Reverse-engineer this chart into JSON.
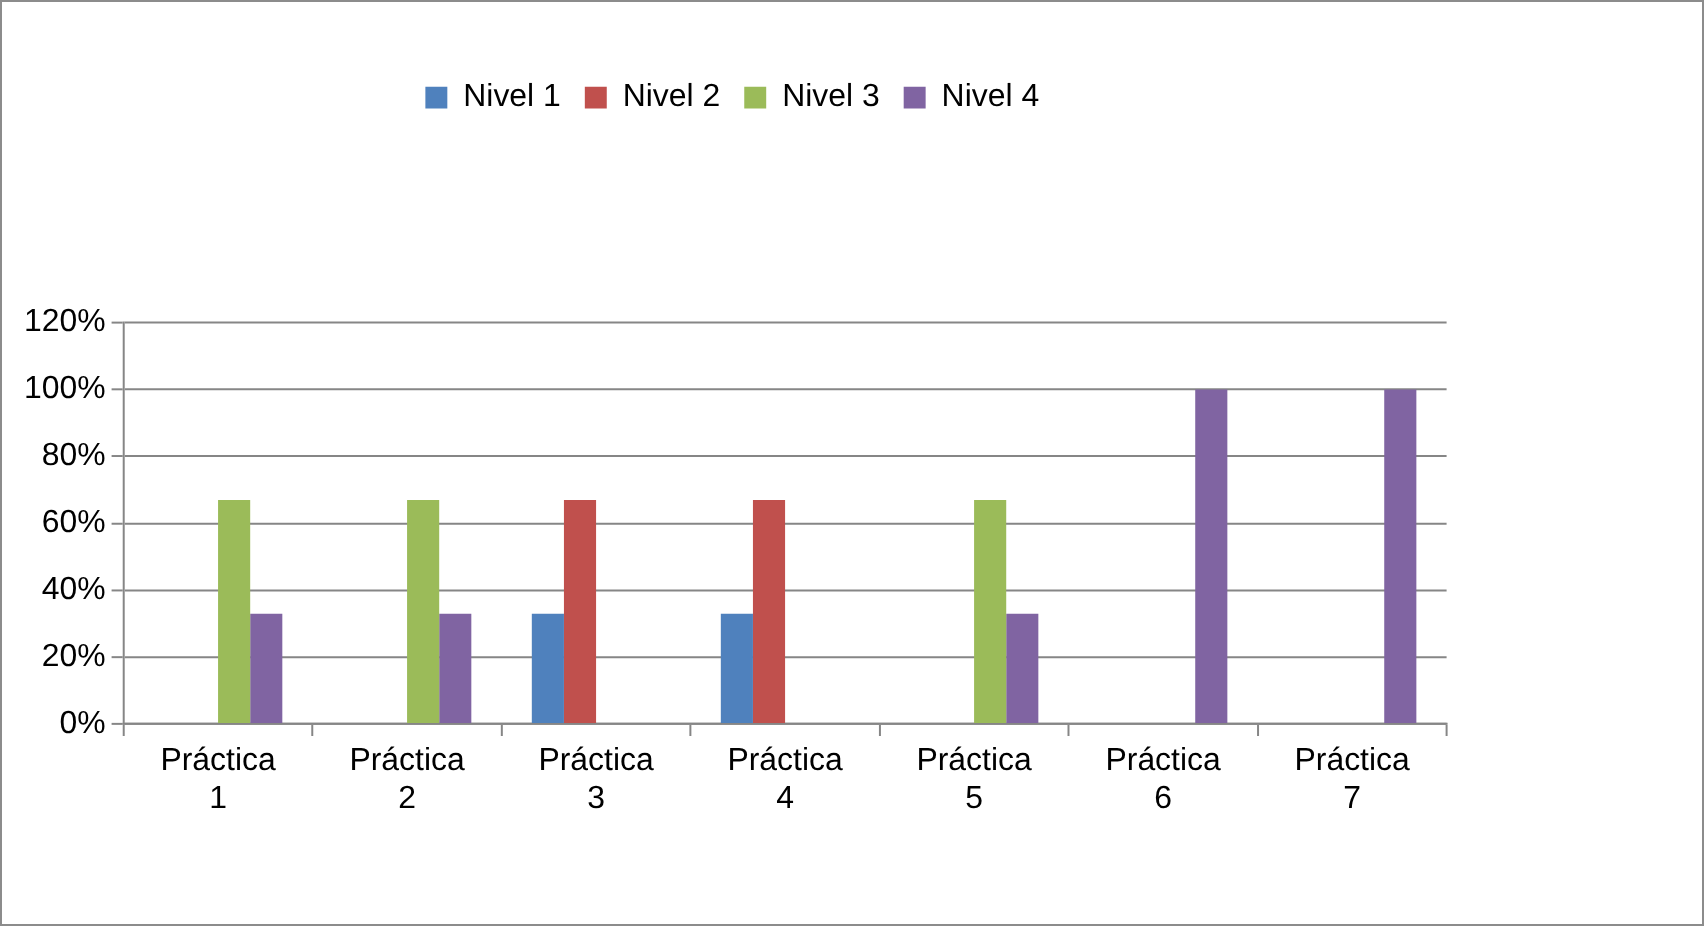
{
  "chart_data": {
    "type": "bar",
    "categories": [
      "Práctica 1",
      "Práctica 2",
      "Práctica 3",
      "Práctica 4",
      "Práctica 5",
      "Práctica 6",
      "Práctica 7"
    ],
    "series": [
      {
        "name": "Nivel 1",
        "color": "#4f81bd",
        "values": [
          0,
          0,
          33,
          33,
          0,
          0,
          0
        ]
      },
      {
        "name": "Nivel 2",
        "color": "#c0504d",
        "values": [
          0,
          0,
          67,
          67,
          0,
          0,
          0
        ]
      },
      {
        "name": "Nivel 3",
        "color": "#9bbb59",
        "values": [
          67,
          67,
          0,
          0,
          67,
          0,
          0
        ]
      },
      {
        "name": "Nivel 4",
        "color": "#8064a2",
        "values": [
          33,
          33,
          0,
          0,
          33,
          100,
          100
        ]
      }
    ],
    "ylim": [
      0,
      120
    ],
    "yticks": [
      {
        "value": 0,
        "label": "0%"
      },
      {
        "value": 20,
        "label": "20%"
      },
      {
        "value": 40,
        "label": "40%"
      },
      {
        "value": 60,
        "label": "60%"
      },
      {
        "value": 80,
        "label": "80%"
      },
      {
        "value": 100,
        "label": "100%"
      },
      {
        "value": 120,
        "label": "120%"
      }
    ],
    "grid": "y",
    "legend": "top"
  }
}
